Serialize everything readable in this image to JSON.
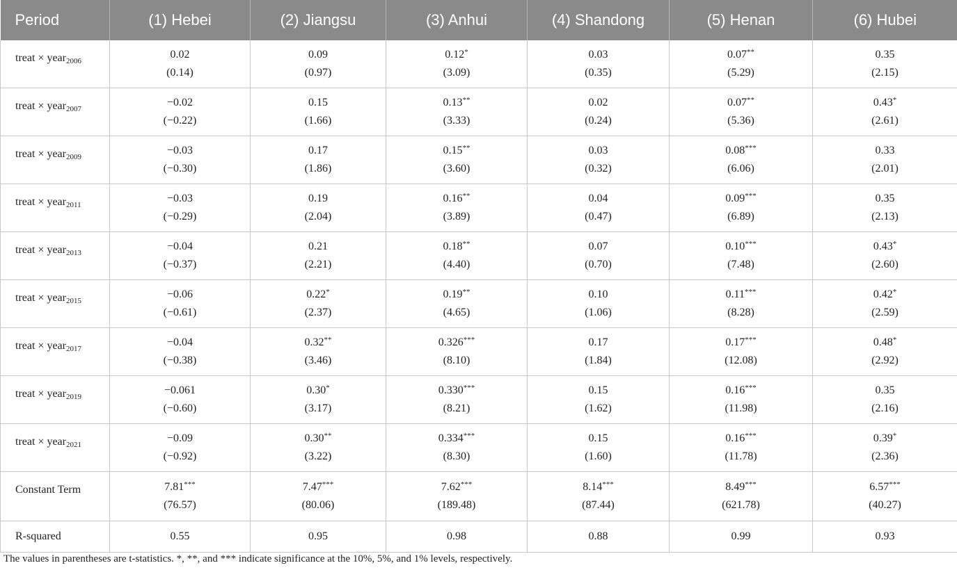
{
  "table": {
    "headers": [
      "Period",
      "(1) Hebei",
      "(2) Jiangsu",
      "(3) Anhui",
      "(4) Shandong",
      "(5) Henan",
      "(6) Hubei"
    ],
    "rows": [
      {
        "label": "treat × year",
        "year": "2006",
        "cells": [
          {
            "coef": "0.02",
            "stars": "",
            "t": "(0.14)"
          },
          {
            "coef": "0.09",
            "stars": "",
            "t": "(0.97)"
          },
          {
            "coef": "0.12",
            "stars": "*",
            "t": "(3.09)"
          },
          {
            "coef": "0.03",
            "stars": "",
            "t": "(0.35)"
          },
          {
            "coef": "0.07",
            "stars": "**",
            "t": "(5.29)"
          },
          {
            "coef": "0.35",
            "stars": "",
            "t": "(2.15)"
          }
        ]
      },
      {
        "label": "treat × year",
        "year": "2007",
        "cells": [
          {
            "coef": "−0.02",
            "stars": "",
            "t": "(−0.22)"
          },
          {
            "coef": "0.15",
            "stars": "",
            "t": "(1.66)"
          },
          {
            "coef": "0.13",
            "stars": "**",
            "t": "(3.33)"
          },
          {
            "coef": "0.02",
            "stars": "",
            "t": "(0.24)"
          },
          {
            "coef": "0.07",
            "stars": "**",
            "t": "(5.36)"
          },
          {
            "coef": "0.43",
            "stars": "*",
            "t": "(2.61)"
          }
        ]
      },
      {
        "label": "treat × year",
        "year": "2009",
        "cells": [
          {
            "coef": "−0.03",
            "stars": "",
            "t": "(−0.30)"
          },
          {
            "coef": "0.17",
            "stars": "",
            "t": "(1.86)"
          },
          {
            "coef": "0.15",
            "stars": "**",
            "t": "(3.60)"
          },
          {
            "coef": "0.03",
            "stars": "",
            "t": "(0.32)"
          },
          {
            "coef": "0.08",
            "stars": "***",
            "t": "(6.06)"
          },
          {
            "coef": "0.33",
            "stars": "",
            "t": "(2.01)"
          }
        ]
      },
      {
        "label": "treat × year",
        "year": "2011",
        "cells": [
          {
            "coef": "−0.03",
            "stars": "",
            "t": "(−0.29)"
          },
          {
            "coef": "0.19",
            "stars": "",
            "t": "(2.04)"
          },
          {
            "coef": "0.16",
            "stars": "**",
            "t": "(3.89)"
          },
          {
            "coef": "0.04",
            "stars": "",
            "t": "(0.47)"
          },
          {
            "coef": "0.09",
            "stars": "***",
            "t": "(6.89)"
          },
          {
            "coef": "0.35",
            "stars": "",
            "t": "(2.13)"
          }
        ]
      },
      {
        "label": "treat × year",
        "year": "2013",
        "cells": [
          {
            "coef": "−0.04",
            "stars": "",
            "t": "(−0.37)"
          },
          {
            "coef": "0.21",
            "stars": "",
            "t": "(2.21)"
          },
          {
            "coef": "0.18",
            "stars": "**",
            "t": "(4.40)"
          },
          {
            "coef": "0.07",
            "stars": "",
            "t": "(0.70)"
          },
          {
            "coef": "0.10",
            "stars": "***",
            "t": "(7.48)"
          },
          {
            "coef": "0.43",
            "stars": "*",
            "t": "(2.60)"
          }
        ]
      },
      {
        "label": "treat × year",
        "year": "2015",
        "cells": [
          {
            "coef": "−0.06",
            "stars": "",
            "t": "(−0.61)"
          },
          {
            "coef": "0.22",
            "stars": "*",
            "t": "(2.37)"
          },
          {
            "coef": "0.19",
            "stars": "**",
            "t": "(4.65)"
          },
          {
            "coef": "0.10",
            "stars": "",
            "t": "(1.06)"
          },
          {
            "coef": "0.11",
            "stars": "***",
            "t": "(8.28)"
          },
          {
            "coef": "0.42",
            "stars": "*",
            "t": "(2.59)"
          }
        ]
      },
      {
        "label": "treat × year",
        "year": "2017",
        "cells": [
          {
            "coef": "−0.04",
            "stars": "",
            "t": "(−0.38)"
          },
          {
            "coef": "0.32",
            "stars": "**",
            "t": "(3.46)"
          },
          {
            "coef": "0.326",
            "stars": "***",
            "t": "(8.10)"
          },
          {
            "coef": "0.17",
            "stars": "",
            "t": "(1.84)"
          },
          {
            "coef": "0.17",
            "stars": "***",
            "t": "(12.08)"
          },
          {
            "coef": "0.48",
            "stars": "*",
            "t": "(2.92)"
          }
        ]
      },
      {
        "label": "treat × year",
        "year": "2019",
        "cells": [
          {
            "coef": "−0.061",
            "stars": "",
            "t": "(−0.60)"
          },
          {
            "coef": "0.30",
            "stars": "*",
            "t": "(3.17)"
          },
          {
            "coef": "0.330",
            "stars": "***",
            "t": "(8.21)"
          },
          {
            "coef": "0.15",
            "stars": "",
            "t": "(1.62)"
          },
          {
            "coef": "0.16",
            "stars": "***",
            "t": "(11.98)"
          },
          {
            "coef": "0.35",
            "stars": "",
            "t": "(2.16)"
          }
        ]
      },
      {
        "label": "treat × year",
        "year": "2021",
        "cells": [
          {
            "coef": "−0.09",
            "stars": "",
            "t": "(−0.92)"
          },
          {
            "coef": "0.30",
            "stars": "**",
            "t": "(3.22)"
          },
          {
            "coef": "0.334",
            "stars": "***",
            "t": "(8.30)"
          },
          {
            "coef": "0.15",
            "stars": "",
            "t": "(1.60)"
          },
          {
            "coef": "0.16",
            "stars": "***",
            "t": "(11.78)"
          },
          {
            "coef": "0.39",
            "stars": "*",
            "t": "(2.36)"
          }
        ]
      },
      {
        "label": "Constant Term",
        "year": "",
        "cells": [
          {
            "coef": "7.81",
            "stars": "***",
            "t": "(76.57)"
          },
          {
            "coef": "7.47",
            "stars": "***",
            "t": "(80.06)"
          },
          {
            "coef": "7.62",
            "stars": "***",
            "t": "(189.48)"
          },
          {
            "coef": "8.14",
            "stars": "***",
            "t": "(87.44)"
          },
          {
            "coef": "8.49",
            "stars": "***",
            "t": "(621.78)"
          },
          {
            "coef": "6.57",
            "stars": "***",
            "t": "(40.27)"
          }
        ]
      },
      {
        "label": "R-squared",
        "year": "",
        "cells": [
          {
            "coef": "0.55",
            "stars": "",
            "t": ""
          },
          {
            "coef": "0.95",
            "stars": "",
            "t": ""
          },
          {
            "coef": "0.98",
            "stars": "",
            "t": ""
          },
          {
            "coef": "0.88",
            "stars": "",
            "t": ""
          },
          {
            "coef": "0.99",
            "stars": "",
            "t": ""
          },
          {
            "coef": "0.93",
            "stars": "",
            "t": ""
          }
        ]
      }
    ]
  },
  "footnote": "The values in parentheses are t-statistics. *, **, and *** indicate significance at the 10%, 5%, and 1% levels, respectively.",
  "colors": {
    "header_bg": "#8a8a8a",
    "header_text": "#ffffff",
    "grid": "#c8c8c8"
  }
}
